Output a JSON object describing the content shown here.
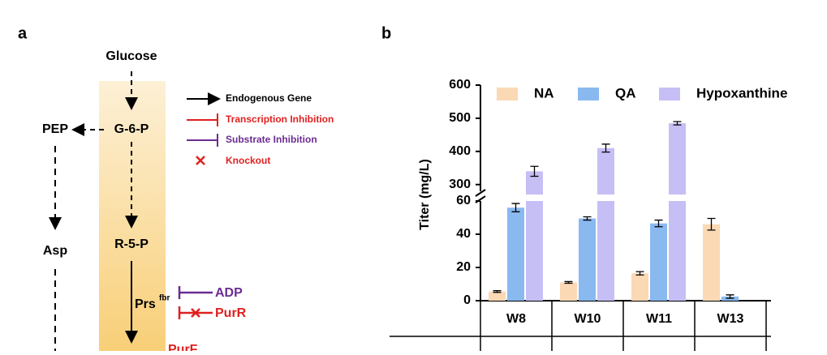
{
  "panel_a": {
    "label": "a",
    "nodes": {
      "glucose": "Glucose",
      "pep": "PEP",
      "g6p": "G-6-P",
      "asp": "Asp",
      "r5p": "R-5-P",
      "prs": "Prs",
      "prs_sup": "fbr",
      "adp": "ADP",
      "purr": "PurR",
      "purf": "PurF"
    },
    "legend": [
      "Endogenous Gene",
      "Transcription Inhibition",
      "Substrate Inhibition",
      "Knockout"
    ]
  },
  "chart_data": {
    "type": "bar",
    "panel_label": "b",
    "y_label": "Titer (mg/L)",
    "categories": [
      "W8",
      "W10",
      "W11",
      "W13"
    ],
    "series": [
      {
        "name": "NA",
        "color": "#fbd9b5",
        "values": [
          5.5,
          11,
          16.5,
          46
        ],
        "errors": [
          0.5,
          0.5,
          1,
          3.5
        ]
      },
      {
        "name": "QA",
        "color": "#8ab9f0",
        "values": [
          56,
          49.5,
          46.5,
          2.5
        ],
        "errors": [
          2.5,
          1,
          2,
          1
        ]
      },
      {
        "name": "Hypoxanthine",
        "color": "#c6bff5",
        "values": [
          340,
          410,
          485,
          null
        ],
        "errors": [
          15,
          12,
          5,
          null
        ]
      }
    ],
    "ylim": [
      0,
      60
    ],
    "yticks": [
      0,
      20,
      40,
      60
    ],
    "ylim_upper": [
      270,
      600
    ],
    "yticks_upper": [
      300,
      400,
      500,
      600
    ]
  }
}
